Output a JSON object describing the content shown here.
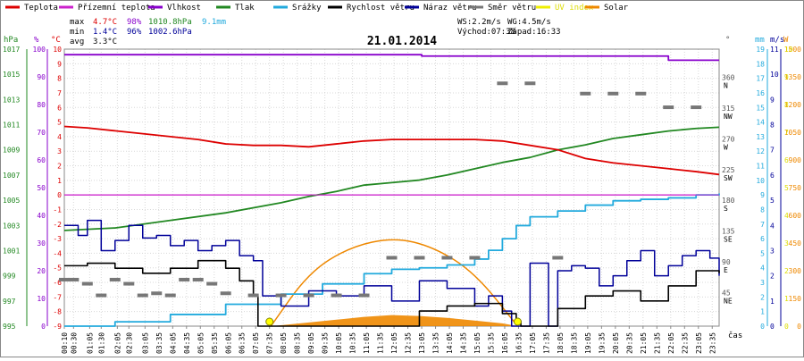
{
  "chart_data": {
    "type": "line",
    "title": "21.01.2014",
    "legend": [
      {
        "name": "Teplota",
        "color": "#dd0000"
      },
      {
        "name": "Přízemní teplota",
        "color": "#cc22cc"
      },
      {
        "name": "Vlhkost",
        "color": "#8800cc"
      },
      {
        "name": "Tlak",
        "color": "#228822"
      },
      {
        "name": "Srážky",
        "color": "#22aadd"
      },
      {
        "name": "Rychlost větru",
        "color": "#000000"
      },
      {
        "name": "Náraz větru",
        "color": "#000099"
      },
      {
        "name": "Směr větru",
        "color": "#777777"
      },
      {
        "name": "UV index",
        "color": "#eeee00"
      },
      {
        "name": "Solar",
        "color": "#ee8800"
      }
    ],
    "stats": {
      "rows": [
        {
          "label": "max",
          "temp": "4.7°C",
          "hum": "98%",
          "press": "1010.8hPa",
          "rain": "9.1mm"
        },
        {
          "label": "min",
          "temp": "1.4°C",
          "hum": "96%",
          "press": "1002.6hPa",
          "rain": ""
        },
        {
          "label": "avg",
          "temp": "3.3°C",
          "hum": "",
          "press": "",
          "rain": ""
        }
      ],
      "ws": "WS:2.2m/s",
      "wg": "WG:4.5m/s",
      "sunrise": "Východ:07:38",
      "sunset": "Západ:16:33"
    },
    "axes": {
      "hpa": {
        "unit": "hPa",
        "ticks": [
          "1017",
          "1015",
          "1013",
          "1011",
          "1009",
          "1007",
          "1005",
          "1003",
          "1001",
          "999",
          "997",
          "995"
        ],
        "range": [
          995,
          1017
        ]
      },
      "pct": {
        "unit": "%",
        "ticks": [
          "100",
          "90",
          "80",
          "70",
          "60",
          "50",
          "40",
          "30",
          "20",
          "10",
          "0"
        ],
        "range": [
          0,
          100
        ]
      },
      "temp": {
        "unit": "°C",
        "ticks": [
          "10",
          "9",
          "8",
          "7",
          "6",
          "5",
          "4",
          "3",
          "2",
          "1",
          "0",
          "-1",
          "-2",
          "-3",
          "-4",
          "-5",
          "-6",
          "-7",
          "-8",
          "-9"
        ],
        "range": [
          -9,
          10
        ]
      },
      "dir": {
        "unit": "°",
        "ticks": [
          {
            "deg": "360",
            "label": "N"
          },
          {
            "deg": "315",
            "label": "NW"
          },
          {
            "deg": "270",
            "label": "W"
          },
          {
            "deg": "225",
            "label": "SW"
          },
          {
            "deg": "180",
            "label": "S"
          },
          {
            "deg": "135",
            "label": "SE"
          },
          {
            "deg": "90",
            "label": "E"
          },
          {
            "deg": "45",
            "label": "NE"
          }
        ]
      },
      "mm": {
        "unit": "mm",
        "ticks": [
          "19",
          "18",
          "17",
          "16",
          "15",
          "14",
          "13",
          "12",
          "11",
          "10",
          "9",
          "8",
          "7",
          "6",
          "5",
          "4",
          "3",
          "2",
          "1",
          "0"
        ]
      },
      "ms": {
        "unit": "m/s",
        "ticks": [
          "11",
          "10",
          "9",
          "8",
          "7",
          "6",
          "5",
          "4",
          "3",
          "2",
          "1",
          "0"
        ],
        "range": [
          0,
          11
        ]
      },
      "uv": {
        "ticks": [
          "10",
          "9",
          "8",
          "7",
          "6",
          "5",
          "4",
          "3",
          "2",
          "1",
          "0"
        ]
      },
      "watt": {
        "unit": "W",
        "ticks": [
          "1500",
          "1350",
          "1200",
          "1050",
          "900",
          "750",
          "600",
          "450",
          "300",
          "150",
          "0"
        ],
        "range": [
          0,
          1500
        ]
      },
      "x_label": "čas",
      "x_ticks": [
        "00:10",
        "00:30",
        "01:05",
        "01:30",
        "02:05",
        "02:30",
        "03:05",
        "03:35",
        "04:05",
        "04:35",
        "05:05",
        "05:35",
        "06:05",
        "06:35",
        "07:05",
        "07:35",
        "08:05",
        "08:35",
        "09:05",
        "09:35",
        "10:05",
        "10:35",
        "11:05",
        "11:35",
        "12:05",
        "12:35",
        "13:05",
        "13:35",
        "14:05",
        "14:35",
        "15:05",
        "15:35",
        "16:05",
        "16:35",
        "17:05",
        "17:35",
        "18:05",
        "18:35",
        "19:05",
        "19:35",
        "20:05",
        "20:35",
        "21:05",
        "21:35",
        "22:05",
        "22:35",
        "23:05",
        "23:35"
      ]
    },
    "series": [
      {
        "name": "Teplota",
        "unit": "°C",
        "x": [
          "00:10",
          "01:00",
          "02:00",
          "03:00",
          "04:00",
          "05:00",
          "06:00",
          "07:00",
          "08:00",
          "09:00",
          "10:00",
          "11:00",
          "12:00",
          "13:00",
          "14:00",
          "15:00",
          "16:00",
          "17:00",
          "18:00",
          "19:00",
          "20:00",
          "21:00",
          "22:00",
          "23:00",
          "23:50"
        ],
        "values": [
          4.7,
          4.6,
          4.4,
          4.2,
          4.0,
          3.8,
          3.5,
          3.4,
          3.4,
          3.3,
          3.5,
          3.7,
          3.8,
          3.8,
          3.8,
          3.8,
          3.7,
          3.4,
          3.1,
          2.5,
          2.2,
          2.0,
          1.8,
          1.6,
          1.4
        ]
      },
      {
        "name": "Přízemní teplota",
        "unit": "°C",
        "x": [
          "00:10",
          "23:50"
        ],
        "values": [
          0.0,
          0.0
        ]
      },
      {
        "name": "Vlhkost",
        "unit": "%",
        "x": [
          "00:10",
          "13:00",
          "13:05",
          "20:00",
          "22:00",
          "23:50"
        ],
        "values": [
          98,
          98,
          97.5,
          97.5,
          96,
          96
        ]
      },
      {
        "name": "Tlak",
        "unit": "hPa",
        "x": [
          "00:10",
          "02:00",
          "04:00",
          "06:00",
          "08:00",
          "09:00",
          "10:00",
          "11:00",
          "12:00",
          "13:00",
          "14:00",
          "15:00",
          "16:00",
          "17:00",
          "18:00",
          "19:00",
          "20:00",
          "21:00",
          "22:00",
          "23:00",
          "23:50"
        ],
        "values": [
          1002.6,
          1002.8,
          1003.4,
          1004.0,
          1004.8,
          1005.3,
          1005.7,
          1006.2,
          1006.4,
          1006.6,
          1007.0,
          1007.5,
          1008.0,
          1008.4,
          1009.0,
          1009.4,
          1009.9,
          1010.2,
          1010.5,
          1010.7,
          1010.8
        ]
      },
      {
        "name": "Srážky",
        "unit": "mm",
        "x": [
          "00:10",
          "02:00",
          "04:00",
          "06:00",
          "08:00",
          "09:30",
          "11:00",
          "12:00",
          "13:00",
          "14:00",
          "15:00",
          "15:30",
          "16:00",
          "16:30",
          "17:00",
          "18:00",
          "19:00",
          "20:00",
          "21:00",
          "22:00",
          "23:00",
          "23:50"
        ],
        "values": [
          0.0,
          0.3,
          0.8,
          1.5,
          2.2,
          2.9,
          3.6,
          3.9,
          4.0,
          4.2,
          4.6,
          5.2,
          6.0,
          6.9,
          7.5,
          7.9,
          8.3,
          8.6,
          8.7,
          8.8,
          9.0,
          9.1
        ]
      },
      {
        "name": "Rychlost větru",
        "unit": "m/s",
        "x": [
          "00:10",
          "01:00",
          "02:00",
          "03:00",
          "04:00",
          "05:00",
          "06:00",
          "06:30",
          "07:00",
          "07:10",
          "12:00",
          "13:00",
          "14:00",
          "15:00",
          "16:00",
          "16:30",
          "16:40",
          "17:00",
          "18:00",
          "19:00",
          "20:00",
          "21:00",
          "22:00",
          "23:00",
          "23:50"
        ],
        "values": [
          2.4,
          2.5,
          2.3,
          2.1,
          2.3,
          2.6,
          2.3,
          1.8,
          1.2,
          0.0,
          0.0,
          0.6,
          0.8,
          0.9,
          0.5,
          0.2,
          0.0,
          0.0,
          0.7,
          1.2,
          1.4,
          1.0,
          1.6,
          2.2,
          2.1
        ]
      },
      {
        "name": "Náraz větru",
        "unit": "m/s",
        "x": [
          "00:10",
          "00:40",
          "01:00",
          "01:30",
          "02:00",
          "02:30",
          "03:00",
          "03:30",
          "04:00",
          "04:30",
          "05:00",
          "05:30",
          "06:00",
          "06:30",
          "07:00",
          "07:20",
          "08:00",
          "09:00",
          "10:00",
          "11:00",
          "12:00",
          "13:00",
          "14:00",
          "15:00",
          "15:30",
          "16:00",
          "16:20",
          "16:40",
          "17:00",
          "17:40",
          "18:00",
          "18:30",
          "19:00",
          "19:30",
          "20:00",
          "20:30",
          "21:00",
          "21:30",
          "22:00",
          "22:30",
          "23:00",
          "23:30",
          "23:50"
        ],
        "values": [
          4.0,
          3.6,
          4.2,
          3.0,
          3.4,
          4.0,
          3.5,
          3.6,
          3.2,
          3.4,
          3.0,
          3.2,
          3.4,
          2.8,
          2.6,
          1.2,
          0.8,
          1.4,
          1.2,
          1.6,
          1.0,
          1.8,
          1.5,
          0.8,
          1.2,
          0.6,
          0.0,
          0.0,
          2.5,
          0.0,
          2.2,
          2.4,
          2.3,
          1.6,
          2.0,
          2.6,
          3.0,
          2.0,
          2.4,
          2.8,
          3.0,
          2.7,
          2.0
        ]
      },
      {
        "name": "Směr větru",
        "unit": "°",
        "x": [
          "00:10",
          "00:30",
          "01:00",
          "01:30",
          "02:00",
          "02:30",
          "03:00",
          "03:30",
          "04:00",
          "04:30",
          "05:00",
          "05:30",
          "06:00",
          "07:00",
          "08:00",
          "09:00",
          "10:00",
          "11:00",
          "12:00",
          "13:00",
          "14:00",
          "15:00",
          "16:00",
          "17:00",
          "18:00",
          "19:00",
          "20:00",
          "21:00",
          "22:00",
          "23:00"
        ],
        "values": [
          68,
          68,
          62,
          45,
          68,
          62,
          45,
          48,
          45,
          68,
          68,
          62,
          48,
          45,
          45,
          45,
          45,
          45,
          100,
          100,
          100,
          100,
          355,
          355,
          100,
          340,
          340,
          340,
          320,
          320
        ]
      },
      {
        "name": "Solar",
        "unit": "W",
        "x": [
          "07:40",
          "09:00",
          "10:00",
          "11:00",
          "12:00",
          "13:00",
          "14:00",
          "15:00",
          "16:00",
          "16:33"
        ],
        "values": [
          0,
          20,
          35,
          50,
          60,
          55,
          45,
          30,
          15,
          0
        ]
      }
    ],
    "solar_envelope": {
      "unit": "W",
      "x": [
        "07:38",
        "09:00",
        "10:30",
        "12:05",
        "13:30",
        "15:00",
        "16:33"
      ],
      "values": [
        0,
        290,
        430,
        480,
        430,
        290,
        0
      ]
    },
    "uv": {
      "x": [
        "07:35",
        "16:33"
      ],
      "values": [
        0,
        0
      ]
    },
    "grid": true,
    "reference_line_temp": 0
  }
}
